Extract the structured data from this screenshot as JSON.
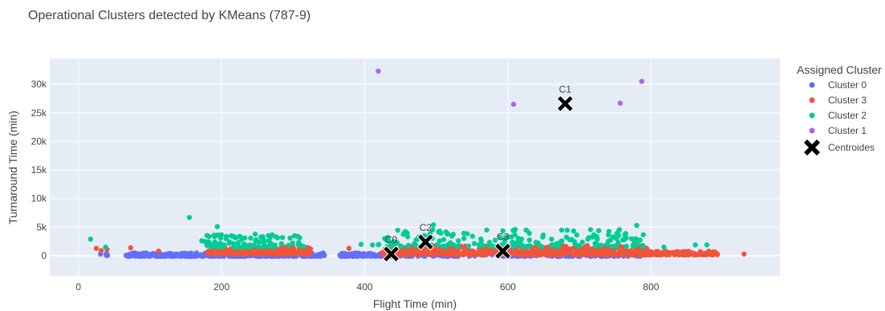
{
  "chart_data": {
    "type": "scatter",
    "title": "Operational Clusters detected by KMeans (787-9)",
    "xlabel": "Flight Time (min)",
    "ylabel": "Turnaround Time (min)",
    "xlim": [
      -40,
      980
    ],
    "ylim": [
      -3500,
      34500
    ],
    "x_ticks": [
      0,
      200,
      400,
      600,
      800
    ],
    "x_tick_labels": [
      "0",
      "200",
      "400",
      "600",
      "800"
    ],
    "y_ticks": [
      0,
      5000,
      10000,
      15000,
      20000,
      25000,
      30000
    ],
    "y_tick_labels": [
      "0",
      "5k",
      "10k",
      "15k",
      "20k",
      "25k",
      "30k"
    ],
    "grid": true,
    "legend": {
      "title": "Assigned Cluster",
      "position": "right"
    },
    "series": [
      {
        "name": "Cluster 0",
        "color": "#636efa",
        "symbol": "circle",
        "segments": [
          {
            "x_range": [
              28,
              45
            ],
            "y_range": [
              0,
              350
            ],
            "count": 6
          },
          {
            "x_range": [
              66,
              345
            ],
            "y_range": [
              -100,
              500
            ],
            "count": 420
          },
          {
            "x_range": [
              365,
              470
            ],
            "y_range": [
              -100,
              500
            ],
            "count": 160
          },
          {
            "x_range": [
              470,
              785
            ],
            "y_range": [
              -100,
              250
            ],
            "count": 120
          }
        ]
      },
      {
        "name": "Cluster 3",
        "color": "#ef553b",
        "symbol": "circle",
        "points": [
          [
            25,
            1300
          ],
          [
            32,
            900
          ],
          [
            40,
            1100
          ],
          [
            73,
            1400
          ],
          [
            112,
            800
          ],
          [
            378,
            1300
          ],
          [
            930,
            300
          ]
        ],
        "segments": [
          {
            "x_range": [
              180,
              325
            ],
            "y_range": [
              300,
              1600
            ],
            "count": 230
          },
          {
            "x_range": [
              425,
              800
            ],
            "y_range": [
              150,
              1800
            ],
            "count": 520
          },
          {
            "x_range": [
              790,
              895
            ],
            "y_range": [
              150,
              800
            ],
            "count": 110
          }
        ]
      },
      {
        "name": "Cluster 2",
        "color": "#00cc96",
        "symbol": "circle",
        "points": [
          [
            17,
            2900
          ],
          [
            38,
            1500
          ],
          [
            155,
            6700
          ],
          [
            194,
            5100
          ],
          [
            395,
            2000
          ],
          [
            496,
            5400
          ],
          [
            780,
            5300
          ],
          [
            818,
            1500
          ],
          [
            862,
            1900
          ],
          [
            878,
            1900
          ]
        ],
        "segments": [
          {
            "x_range": [
              172,
              315
            ],
            "y_range": [
              1500,
              3800
            ],
            "count": 95
          },
          {
            "x_range": [
              410,
              790
            ],
            "y_range": [
              1600,
              4600
            ],
            "count": 180
          }
        ]
      },
      {
        "name": "Cluster 1",
        "color": "#ab63fa",
        "symbol": "circle",
        "points": [
          [
            419,
            32300
          ],
          [
            608,
            26500
          ],
          [
            757,
            26700
          ],
          [
            787,
            30500
          ]
        ]
      }
    ],
    "centroids": {
      "name": "Centroides",
      "color": "#000000",
      "symbol": "x",
      "points": [
        {
          "label": "C0",
          "x": 437,
          "y": 300
        },
        {
          "label": "C2",
          "x": 485,
          "y": 2400
        },
        {
          "label": "C3",
          "x": 593,
          "y": 800
        },
        {
          "label": "C1",
          "x": 680,
          "y": 26600
        }
      ]
    }
  }
}
